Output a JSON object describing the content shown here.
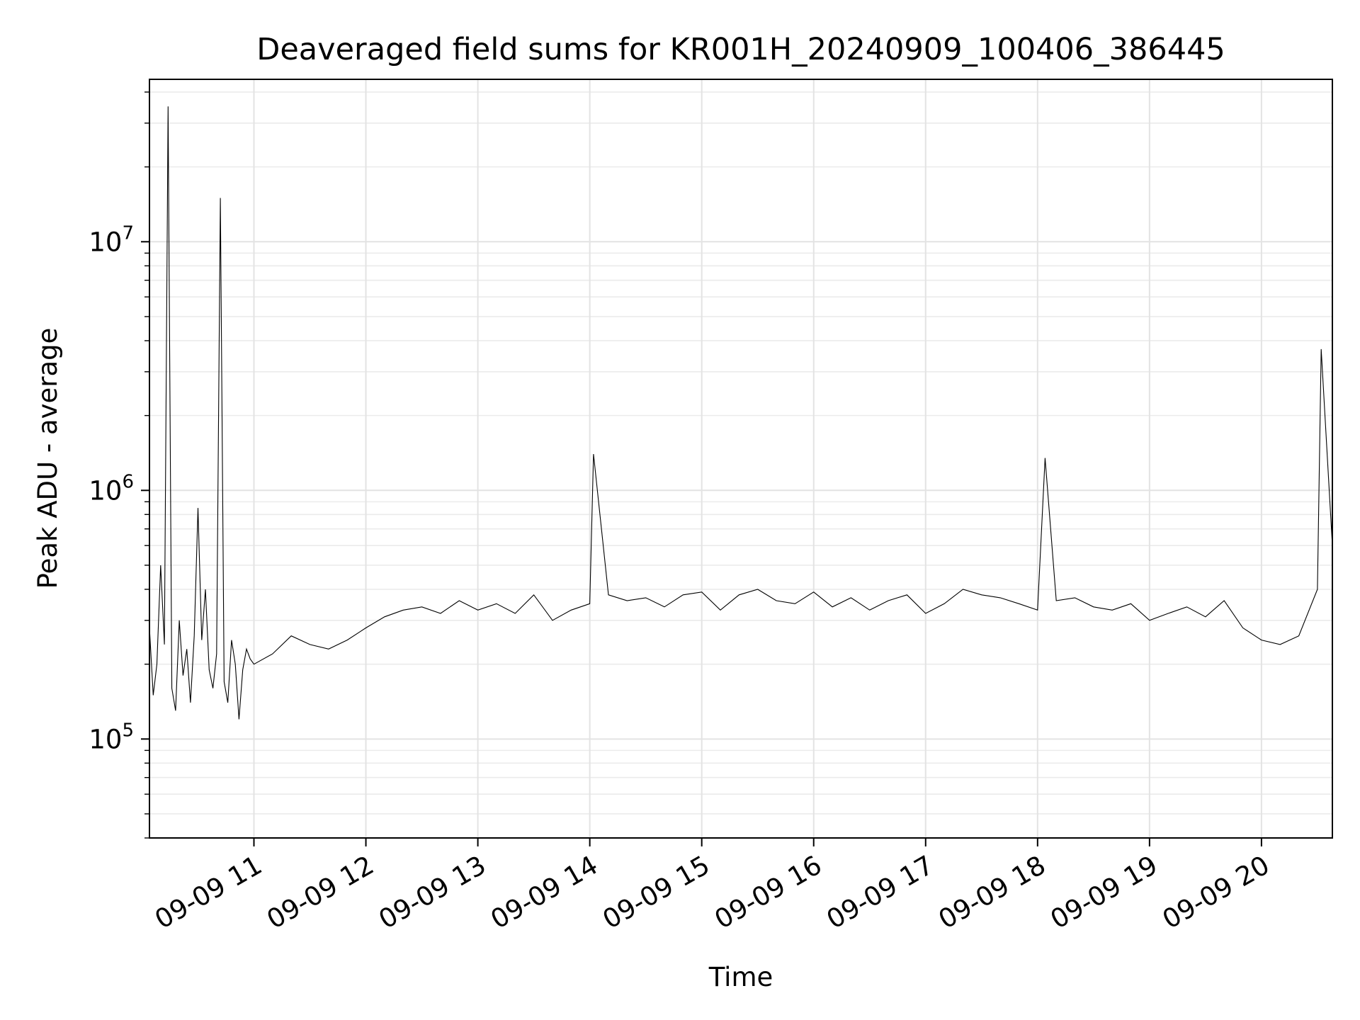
{
  "chart_data": {
    "type": "line",
    "title": "Deaveraged field sums for KR001H_20240909_100406_386445",
    "xlabel": "Time",
    "ylabel": "Peak ADU - average",
    "yscale": "log",
    "grid": true,
    "legend": "none",
    "line_color": "#000000",
    "xlim": [
      "2024-09-09 10:04",
      "2024-09-09 20:38"
    ],
    "ylim": [
      40000,
      45000000
    ],
    "x_ticks": [
      "09-09 11",
      "09-09 12",
      "09-09 13",
      "09-09 14",
      "09-09 15",
      "09-09 16",
      "09-09 17",
      "09-09 18",
      "09-09 19",
      "09-09 20"
    ],
    "y_ticks": [
      {
        "base": "10",
        "exp": "5"
      },
      {
        "base": "10",
        "exp": "6"
      },
      {
        "base": "10",
        "exp": "7"
      }
    ],
    "series": [
      {
        "x": [
          "2024-09-09 10:04",
          "2024-09-09 10:06",
          "2024-09-09 10:08",
          "2024-09-09 10:10",
          "2024-09-09 10:12",
          "2024-09-09 10:14",
          "2024-09-09 10:16",
          "2024-09-09 10:18",
          "2024-09-09 10:20",
          "2024-09-09 10:22",
          "2024-09-09 10:24",
          "2024-09-09 10:26",
          "2024-09-09 10:28",
          "2024-09-09 10:30",
          "2024-09-09 10:32",
          "2024-09-09 10:34",
          "2024-09-09 10:36",
          "2024-09-09 10:38",
          "2024-09-09 10:40",
          "2024-09-09 10:42",
          "2024-09-09 10:44",
          "2024-09-09 10:46",
          "2024-09-09 10:48",
          "2024-09-09 10:50",
          "2024-09-09 10:52",
          "2024-09-09 10:54",
          "2024-09-09 10:56",
          "2024-09-09 10:58",
          "2024-09-09 11:00",
          "2024-09-09 11:10",
          "2024-09-09 11:20",
          "2024-09-09 11:30",
          "2024-09-09 11:40",
          "2024-09-09 11:50",
          "2024-09-09 12:00",
          "2024-09-09 12:10",
          "2024-09-09 12:20",
          "2024-09-09 12:30",
          "2024-09-09 12:40",
          "2024-09-09 12:50",
          "2024-09-09 13:00",
          "2024-09-09 13:10",
          "2024-09-09 13:20",
          "2024-09-09 13:30",
          "2024-09-09 13:40",
          "2024-09-09 13:50",
          "2024-09-09 14:00",
          "2024-09-09 14:02",
          "2024-09-09 14:10",
          "2024-09-09 14:20",
          "2024-09-09 14:30",
          "2024-09-09 14:40",
          "2024-09-09 14:50",
          "2024-09-09 15:00",
          "2024-09-09 15:10",
          "2024-09-09 15:20",
          "2024-09-09 15:30",
          "2024-09-09 15:40",
          "2024-09-09 15:50",
          "2024-09-09 16:00",
          "2024-09-09 16:10",
          "2024-09-09 16:20",
          "2024-09-09 16:30",
          "2024-09-09 16:40",
          "2024-09-09 16:50",
          "2024-09-09 17:00",
          "2024-09-09 17:10",
          "2024-09-09 17:20",
          "2024-09-09 17:30",
          "2024-09-09 17:40",
          "2024-09-09 17:50",
          "2024-09-09 18:00",
          "2024-09-09 18:04",
          "2024-09-09 18:10",
          "2024-09-09 18:20",
          "2024-09-09 18:30",
          "2024-09-09 18:40",
          "2024-09-09 18:50",
          "2024-09-09 19:00",
          "2024-09-09 19:10",
          "2024-09-09 19:20",
          "2024-09-09 19:30",
          "2024-09-09 19:40",
          "2024-09-09 19:50",
          "2024-09-09 20:00",
          "2024-09-09 20:10",
          "2024-09-09 20:20",
          "2024-09-09 20:30",
          "2024-09-09 20:32",
          "2024-09-09 20:38"
        ],
        "y": [
          280000,
          150000,
          200000,
          500000,
          240000,
          35000000,
          160000,
          130000,
          300000,
          180000,
          230000,
          140000,
          260000,
          850000,
          250000,
          400000,
          190000,
          160000,
          220000,
          15000000,
          170000,
          140000,
          250000,
          200000,
          120000,
          190000,
          230000,
          210000,
          200000,
          220000,
          260000,
          240000,
          230000,
          250000,
          280000,
          310000,
          330000,
          340000,
          320000,
          360000,
          330000,
          350000,
          320000,
          380000,
          300000,
          330000,
          350000,
          1400000,
          380000,
          360000,
          370000,
          340000,
          380000,
          390000,
          330000,
          380000,
          400000,
          360000,
          350000,
          390000,
          340000,
          370000,
          330000,
          360000,
          380000,
          320000,
          350000,
          400000,
          380000,
          370000,
          350000,
          330000,
          1350000,
          360000,
          370000,
          340000,
          330000,
          350000,
          300000,
          320000,
          340000,
          310000,
          360000,
          280000,
          250000,
          240000,
          260000,
          400000,
          3700000,
          600000
        ]
      }
    ]
  }
}
